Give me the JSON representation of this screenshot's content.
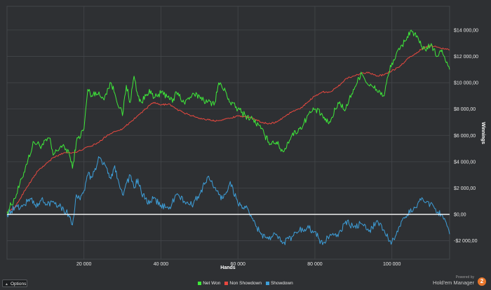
{
  "chart_data": {
    "type": "line",
    "title": "",
    "xlabel": "Hands",
    "ylabel": "Winnings",
    "xlim": [
      0,
      115000
    ],
    "ylim": [
      -3400,
      15800
    ],
    "x_ticks": [
      20000,
      40000,
      60000,
      80000,
      100000
    ],
    "x_tick_labels": [
      "20 000",
      "40 000",
      "60 000",
      "80 000",
      "100 000"
    ],
    "y_ticks": [
      -2000,
      0,
      2000,
      4000,
      6000,
      8000,
      10000,
      12000,
      14000
    ],
    "y_tick_labels": [
      "-$2 000,00",
      "$0,00",
      "$2 000,00",
      "$4 000,00",
      "$6 000,00",
      "$8 000,00",
      "$10 000,00",
      "$12 000,00",
      "$14 000,00"
    ],
    "grid": true,
    "legend_position": "bottom",
    "background_color": "#2e3033",
    "grid_color": "#43464a",
    "zero_line_color": "#ffffff",
    "series": [
      {
        "name": "Net Won",
        "color": "#3ee83a",
        "x": [
          0,
          2000,
          4000,
          5000,
          7000,
          9000,
          11000,
          12000,
          14000,
          16000,
          17000,
          18000,
          20000,
          21000,
          22000,
          23000,
          25000,
          27000,
          28000,
          30000,
          31000,
          32000,
          33000,
          34000,
          35000,
          37000,
          38000,
          40000,
          42000,
          43000,
          44000,
          46000,
          48000,
          50000,
          52000,
          54000,
          55000,
          57000,
          58000,
          60000,
          62000,
          64000,
          66000,
          67000,
          68000,
          70000,
          71000,
          72000,
          73000,
          74000,
          76000,
          77000,
          78000,
          80000,
          82000,
          83000,
          84000,
          86000,
          88000,
          90000,
          91000,
          92000,
          94000,
          96000,
          98000,
          99000,
          100000,
          102000,
          104000,
          105000,
          107000,
          108000,
          110000,
          112000,
          113000,
          115000
        ],
        "values": [
          200,
          1200,
          2800,
          3800,
          5500,
          5200,
          5800,
          4500,
          5200,
          4800,
          3500,
          5500,
          6500,
          9500,
          9000,
          9300,
          8800,
          10000,
          9200,
          7500,
          9800,
          8500,
          10500,
          9000,
          8500,
          9500,
          8800,
          9200,
          9000,
          8500,
          9300,
          8500,
          9000,
          9000,
          8500,
          8500,
          10000,
          9200,
          8500,
          8000,
          7500,
          7200,
          6500,
          6000,
          5500,
          5500,
          5000,
          4800,
          5500,
          6000,
          6500,
          6800,
          7500,
          8000,
          7500,
          7000,
          7000,
          8500,
          8000,
          9500,
          10000,
          10800,
          9800,
          9500,
          9000,
          10500,
          11500,
          12500,
          13500,
          14000,
          13200,
          12500,
          12800,
          12000,
          12500,
          11000
        ]
      },
      {
        "name": "Non Showdown",
        "color": "#e8483f",
        "x": [
          0,
          2000,
          5000,
          8000,
          10000,
          12000,
          15000,
          18000,
          20000,
          22000,
          24000,
          26000,
          28000,
          30000,
          32000,
          34000,
          36000,
          38000,
          40000,
          42000,
          44000,
          46000,
          48000,
          50000,
          52000,
          54000,
          56000,
          58000,
          60000,
          62000,
          64000,
          66000,
          68000,
          70000,
          72000,
          74000,
          76000,
          78000,
          80000,
          82000,
          84000,
          86000,
          88000,
          90000,
          92000,
          94000,
          96000,
          98000,
          100000,
          102000,
          104000,
          106000,
          108000,
          110000,
          112000,
          115000
        ],
        "values": [
          200,
          500,
          2000,
          3300,
          3800,
          4300,
          4700,
          4700,
          5000,
          5200,
          5500,
          6000,
          6300,
          6500,
          7000,
          7500,
          8000,
          8500,
          8300,
          8400,
          8000,
          7700,
          7500,
          7300,
          7200,
          7100,
          7200,
          7300,
          7500,
          7400,
          7300,
          7000,
          6900,
          7000,
          7400,
          7800,
          8000,
          8500,
          9000,
          9300,
          9300,
          9700,
          10300,
          10500,
          10700,
          10800,
          10500,
          10600,
          10900,
          11200,
          11800,
          12200,
          12600,
          12800,
          12700,
          12500
        ]
      },
      {
        "name": "Showdown",
        "color": "#3d9ed8",
        "x": [
          0,
          2000,
          4000,
          6000,
          8000,
          9000,
          10000,
          12000,
          14000,
          16000,
          17000,
          18000,
          19000,
          20000,
          21000,
          22000,
          24000,
          25000,
          26000,
          27000,
          28000,
          29000,
          30000,
          32000,
          33000,
          34000,
          35000,
          36000,
          37000,
          38000,
          40000,
          42000,
          44000,
          46000,
          48000,
          50000,
          52000,
          53000,
          55000,
          56000,
          57000,
          58000,
          60000,
          62000,
          63000,
          64000,
          66000,
          68000,
          70000,
          72000,
          74000,
          76000,
          78000,
          80000,
          82000,
          84000,
          86000,
          88000,
          90000,
          92000,
          94000,
          96000,
          98000,
          99000,
          100000,
          102000,
          104000,
          106000,
          108000,
          110000,
          112000,
          113000,
          115000
        ],
        "values": [
          0,
          500,
          600,
          1200,
          600,
          1200,
          700,
          1000,
          600,
          0,
          -800,
          1500,
          1100,
          1800,
          3000,
          2800,
          4300,
          3800,
          3500,
          2700,
          3700,
          2500,
          1500,
          3000,
          2000,
          2700,
          1500,
          1200,
          800,
          1200,
          700,
          400,
          1500,
          1000,
          700,
          1500,
          2800,
          2500,
          1500,
          1200,
          1700,
          2500,
          800,
          500,
          0,
          -500,
          -1500,
          -1900,
          -1500,
          -2100,
          -1700,
          -1200,
          -1000,
          -1300,
          -2300,
          -1500,
          -1700,
          -500,
          -1000,
          -700,
          -1300,
          -500,
          -1200,
          -1800,
          -2100,
          -900,
          0,
          500,
          1200,
          800,
          200,
          0,
          -1500
        ]
      }
    ]
  },
  "ui": {
    "options_label": "Options",
    "powered_by": "Powered by",
    "brand": "Hold'em Manager",
    "badge": "2"
  }
}
